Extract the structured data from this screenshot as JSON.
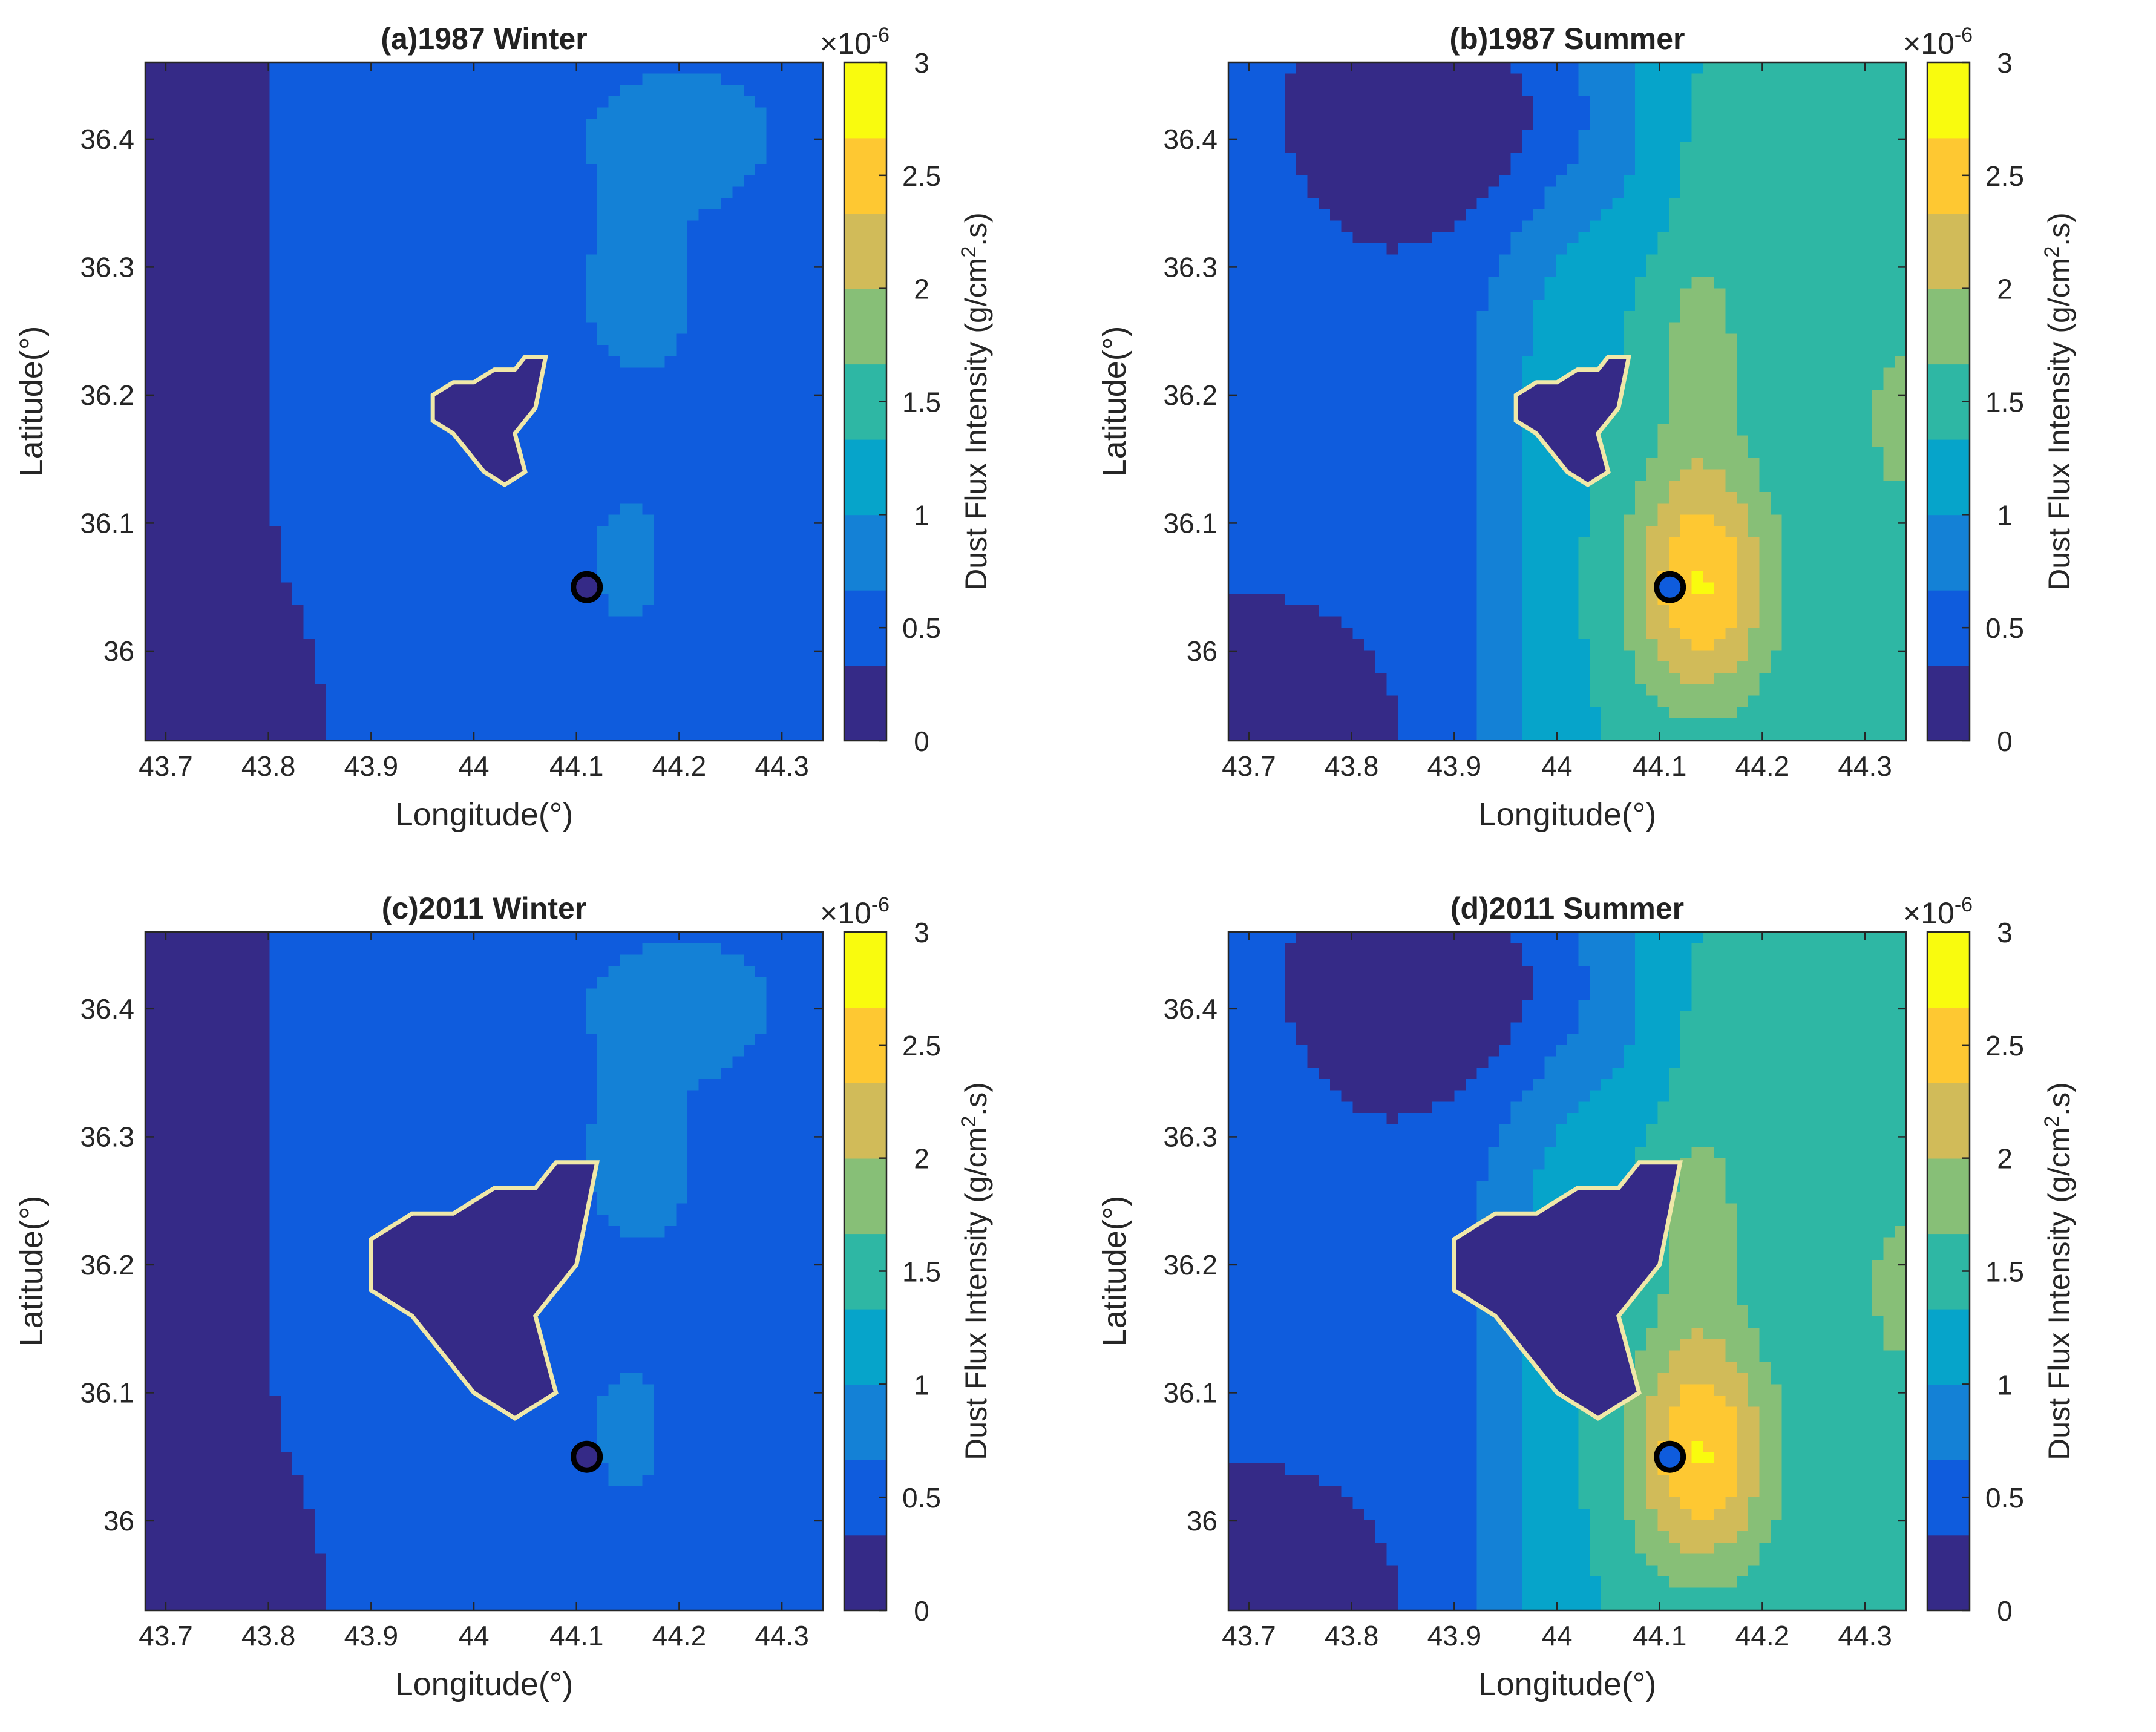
{
  "colormap": [
    "#352a87",
    "#0f5cdd",
    "#1481d6",
    "#06a4ca",
    "#2eb7a4",
    "#87bf77",
    "#d1bb59",
    "#fec832",
    "#f9fb0e"
  ],
  "urban_outline_color": "#f0e8a8",
  "common": {
    "xlabel": "Longitude(°)",
    "ylabel": "Latitude(°)",
    "cb_label_main": "Dust Flux Intensity (g/cm",
    "cb_label_sup": "2",
    "cb_label_end": ".s)",
    "cb_multiplier_base": "×10",
    "cb_multiplier_exp": "-6",
    "x_ticks": [
      "43.7",
      "43.8",
      "43.9",
      "44",
      "44.1",
      "44.2",
      "44.3"
    ],
    "y_ticks": [
      "36",
      "36.1",
      "36.2",
      "36.3",
      "36.4"
    ],
    "cb_ticks": [
      "0",
      "0.5",
      "1",
      "1.5",
      "2",
      "2.5",
      "3"
    ]
  },
  "chart_data": [
    {
      "type": "heatmap",
      "title": "(a)1987 Winter",
      "xlim": [
        43.68,
        44.34
      ],
      "ylim": [
        35.93,
        36.46
      ],
      "clim": [
        0,
        3
      ],
      "units": "x10^-6 g/cm^2.s",
      "season": "winter",
      "year": "1987",
      "urban_scale": 1
    },
    {
      "type": "heatmap",
      "title": "(b)1987 Summer",
      "xlim": [
        43.68,
        44.34
      ],
      "ylim": [
        35.93,
        36.46
      ],
      "clim": [
        0,
        3
      ],
      "units": "x10^-6 g/cm^2.s",
      "season": "summer",
      "year": "1987",
      "urban_scale": 1
    },
    {
      "type": "heatmap",
      "title": "(c)2011 Winter",
      "xlim": [
        43.68,
        44.34
      ],
      "ylim": [
        35.93,
        36.46
      ],
      "clim": [
        0,
        3
      ],
      "units": "x10^-6 g/cm^2.s",
      "season": "winter",
      "year": "2011",
      "urban_scale": 2
    },
    {
      "type": "heatmap",
      "title": "(d)2011 Summer",
      "xlim": [
        43.68,
        44.34
      ],
      "ylim": [
        35.93,
        36.46
      ],
      "clim": [
        0,
        3
      ],
      "units": "x10^-6 g/cm^2.s",
      "season": "summer",
      "year": "2011",
      "urban_scale": 2
    }
  ]
}
